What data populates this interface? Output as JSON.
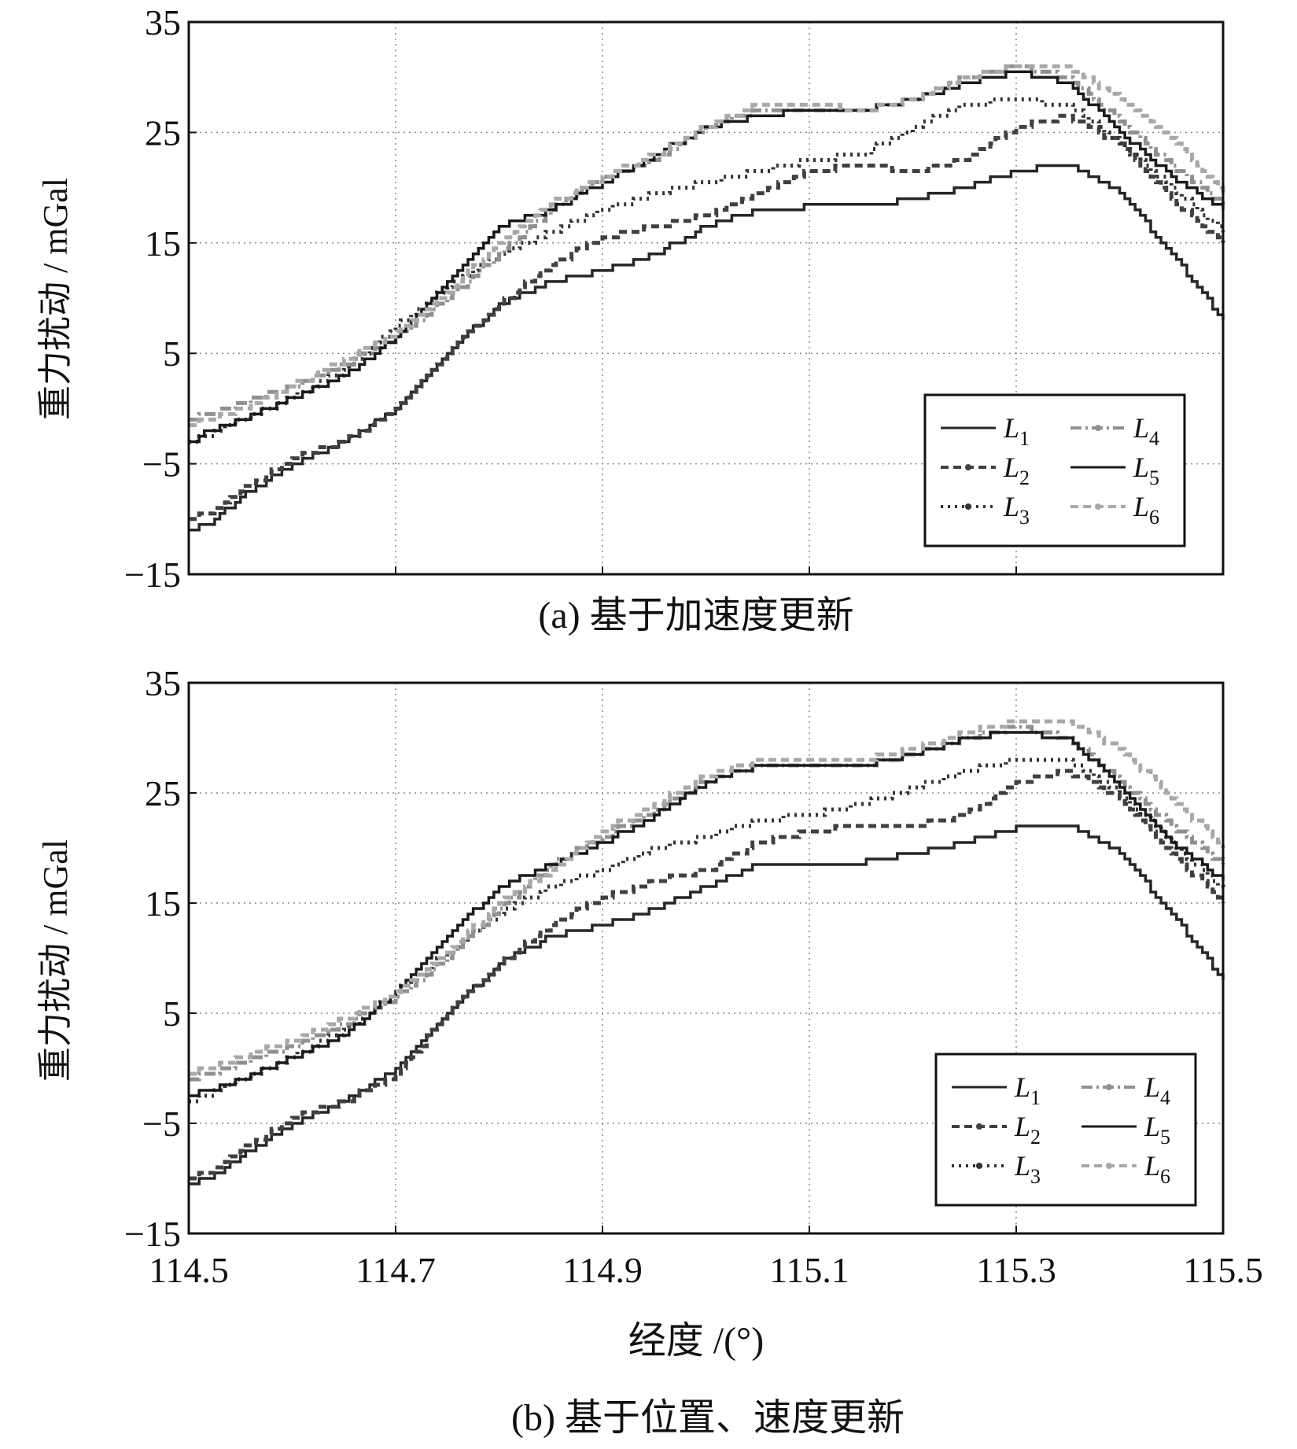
{
  "figure": {
    "xlabel": "经度 /(°)",
    "x_ticks": [
      "114.5",
      "114.7",
      "114.9",
      "115.1",
      "115.3",
      "115.5"
    ]
  },
  "chart_data": [
    {
      "type": "line",
      "caption": "(a) 基于加速度更新",
      "ylabel": "重力扰动 / mGal",
      "xlim": [
        114.5,
        115.5
      ],
      "ylim": [
        -15,
        35
      ],
      "y_ticks": [
        "−15",
        "−5",
        "5",
        "15",
        "25",
        "35"
      ],
      "grid": true,
      "legend_position": "bottom-right",
      "legend": [
        "L1",
        "L2",
        "L3",
        "L4",
        "L5",
        "L6"
      ],
      "x": [
        114.5,
        114.52,
        114.55,
        114.6,
        114.65,
        114.7,
        114.75,
        114.8,
        114.85,
        114.9,
        114.95,
        115.0,
        115.05,
        115.1,
        115.15,
        115.2,
        115.25,
        115.3,
        115.35,
        115.4,
        115.45,
        115.5
      ],
      "series": [
        {
          "name": "L1",
          "color": "#262626",
          "dash": "",
          "values": [
            -11,
            -10.5,
            -8,
            -5,
            -3,
            0,
            5,
            9.5,
            11.5,
            12.5,
            14,
            16.5,
            18,
            18.3,
            18.3,
            19,
            20,
            21.5,
            22.2,
            19.5,
            14,
            8
          ]
        },
        {
          "name": "L2",
          "color": "#404040",
          "dash": "10,6",
          "values": [
            -10,
            -9.5,
            -7.5,
            -4.5,
            -3,
            0,
            5,
            9.5,
            13,
            15.5,
            16.5,
            17.5,
            19.5,
            21.5,
            22,
            21.5,
            22.5,
            25.5,
            26.5,
            24,
            19,
            15
          ]
        },
        {
          "name": "L3",
          "color": "#333333",
          "dash": "3,6",
          "values": [
            -3,
            -2.5,
            -1,
            1,
            3.5,
            7.5,
            11,
            14,
            16,
            18,
            19.5,
            20.5,
            21.5,
            22.5,
            23,
            25.5,
            27.5,
            28,
            27.5,
            24,
            20,
            16
          ]
        },
        {
          "name": "L4",
          "color": "#909090",
          "dash": "14,5,3,5",
          "values": [
            -1,
            -0.5,
            0.5,
            2,
            4,
            6.5,
            10,
            14,
            18,
            21,
            22.5,
            25.5,
            27,
            27,
            27,
            28,
            30,
            31,
            30,
            26,
            22,
            18.5
          ]
        },
        {
          "name": "L5",
          "color": "#1a1a1a",
          "dash": "",
          "values": [
            -3,
            -2,
            -1,
            1,
            3,
            6.5,
            11.5,
            16.5,
            18,
            20.5,
            23,
            25.5,
            26.5,
            27,
            27,
            28,
            29.5,
            30.5,
            29.5,
            25,
            21,
            18
          ]
        },
        {
          "name": "L6",
          "color": "#a8a8a8",
          "dash": "10,6",
          "values": [
            -1.5,
            -1,
            0,
            2,
            4.5,
            7,
            10.5,
            15,
            18.5,
            21,
            23,
            25.5,
            27.5,
            27.5,
            27,
            28,
            30,
            31,
            31,
            28,
            24.5,
            19.5
          ]
        }
      ]
    },
    {
      "type": "line",
      "caption": "(b) 基于位置、速度更新",
      "ylabel": "重力扰动 / mGal",
      "xlim": [
        114.5,
        115.5
      ],
      "ylim": [
        -15,
        35
      ],
      "y_ticks": [
        "−15",
        "−5",
        "5",
        "15",
        "25",
        "35"
      ],
      "grid": true,
      "legend_position": "bottom-right",
      "legend": [
        "L1",
        "L2",
        "L3",
        "L4",
        "L5",
        "L6"
      ],
      "x": [
        114.5,
        114.52,
        114.55,
        114.6,
        114.65,
        114.7,
        114.75,
        114.8,
        114.85,
        114.9,
        114.95,
        115.0,
        115.05,
        115.1,
        115.15,
        115.2,
        115.25,
        115.3,
        115.35,
        115.4,
        115.45,
        115.5
      ],
      "series": [
        {
          "name": "L1",
          "color": "#262626",
          "dash": "",
          "values": [
            -10.5,
            -10,
            -8,
            -5,
            -3,
            0,
            5,
            9.5,
            12,
            13,
            14.5,
            16.5,
            18.5,
            18.7,
            18.7,
            19.5,
            20.5,
            21.8,
            22.2,
            19.5,
            14,
            8
          ]
        },
        {
          "name": "L2",
          "color": "#404040",
          "dash": "10,6",
          "values": [
            -10,
            -9.5,
            -7.5,
            -4.5,
            -3,
            -0.5,
            5,
            9.5,
            13,
            15.5,
            17,
            18,
            20.5,
            21.5,
            22,
            22,
            23,
            26,
            27,
            24.5,
            19.5,
            15
          ]
        },
        {
          "name": "L3",
          "color": "#333333",
          "dash": "3,6",
          "values": [
            -3,
            -2.5,
            -1,
            1,
            3.5,
            7,
            10.5,
            14,
            16.5,
            18,
            20,
            21,
            22.5,
            23,
            24,
            25.5,
            27,
            28,
            28,
            25,
            20.5,
            16
          ]
        },
        {
          "name": "L4",
          "color": "#909090",
          "dash": "14,5,3,5",
          "values": [
            -1,
            -0.5,
            0.5,
            2,
            4,
            6.5,
            10,
            14.5,
            18.5,
            21,
            23.5,
            26,
            27.5,
            27.5,
            27.5,
            28.5,
            30,
            31,
            30,
            26,
            22,
            18.5
          ]
        },
        {
          "name": "L5",
          "color": "#1a1a1a",
          "dash": "",
          "values": [
            -2.5,
            -2,
            -1,
            1,
            3,
            7,
            12,
            16.5,
            18.5,
            20.5,
            23,
            26,
            27.5,
            27.5,
            27.5,
            28.5,
            30,
            30.5,
            30,
            25.5,
            20.5,
            17
          ]
        },
        {
          "name": "L6",
          "color": "#a8a8a8",
          "dash": "10,6",
          "values": [
            -0.5,
            0,
            1,
            2.5,
            4.5,
            7,
            10.5,
            15,
            18,
            21.5,
            24,
            26.5,
            28,
            28,
            28,
            29,
            30.5,
            31.5,
            31.5,
            29,
            24.5,
            20
          ]
        }
      ]
    }
  ]
}
